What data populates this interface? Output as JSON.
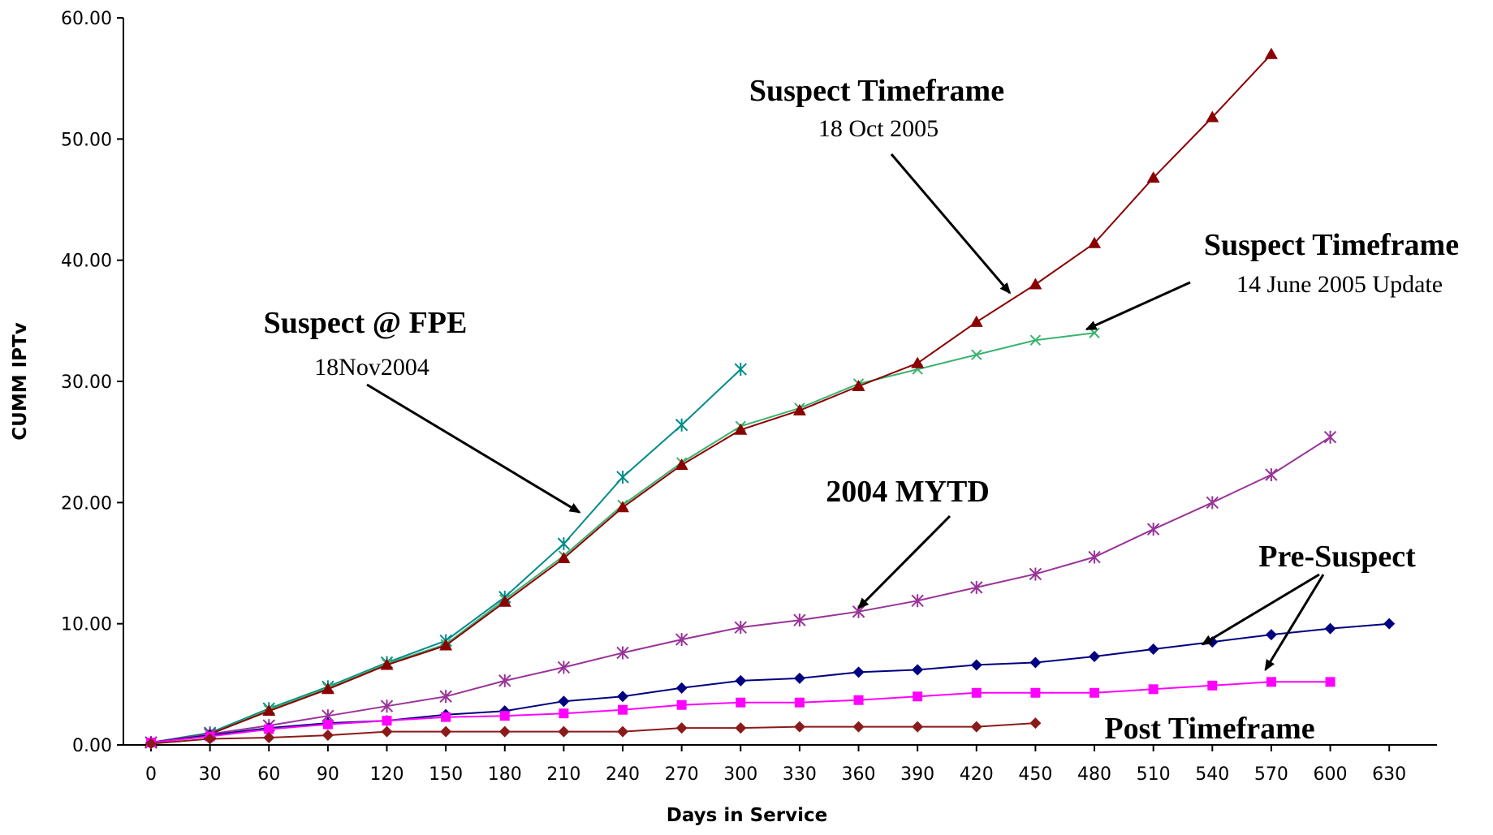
{
  "chart_data": {
    "type": "line",
    "xlabel": "Days in Service",
    "ylabel": "CUMM IPTv",
    "xlim": [
      0,
      630
    ],
    "ylim": [
      0,
      60
    ],
    "x_ticks": [
      "0",
      "30",
      "60",
      "90",
      "120",
      "150",
      "180",
      "210",
      "240",
      "270",
      "300",
      "330",
      "360",
      "390",
      "420",
      "450",
      "480",
      "510",
      "540",
      "570",
      "600",
      "630"
    ],
    "y_ticks": [
      "0.00",
      "10.00",
      "20.00",
      "30.00",
      "40.00",
      "50.00",
      "60.00"
    ],
    "grid": false,
    "legend": "none",
    "series": [
      {
        "color": "#008b8b",
        "marker": "star",
        "x": [
          0,
          30,
          60,
          90,
          120,
          150,
          180,
          210,
          240,
          270,
          300
        ],
        "y": [
          0.2,
          1.0,
          3.0,
          4.8,
          6.8,
          8.6,
          12.2,
          16.6,
          22.1,
          26.4,
          31.0
        ]
      },
      {
        "color": "#3cb371",
        "marker": "x",
        "x": [
          0,
          30,
          60,
          90,
          120,
          150,
          180,
          210,
          240,
          270,
          300,
          330,
          360,
          390,
          420,
          450,
          480
        ],
        "y": [
          0.2,
          0.9,
          2.9,
          4.7,
          6.7,
          8.3,
          12.0,
          15.6,
          19.8,
          23.3,
          26.3,
          27.8,
          29.8,
          31.0,
          32.2,
          33.4,
          34.0
        ]
      },
      {
        "color": "#8b0000",
        "marker": "triangle",
        "x": [
          0,
          30,
          60,
          90,
          120,
          150,
          180,
          210,
          240,
          270,
          300,
          330,
          360,
          390,
          420,
          450,
          480,
          510,
          540,
          570
        ],
        "y": [
          0.2,
          0.9,
          2.8,
          4.6,
          6.6,
          8.2,
          11.8,
          15.4,
          19.6,
          23.1,
          26.0,
          27.6,
          29.6,
          31.5,
          34.9,
          38.0,
          41.4,
          46.8,
          51.8,
          57.0
        ]
      },
      {
        "color": "#993399",
        "marker": "star",
        "x": [
          0,
          30,
          60,
          90,
          120,
          150,
          180,
          210,
          240,
          270,
          300,
          330,
          360,
          390,
          420,
          450,
          480,
          510,
          540,
          570,
          600
        ],
        "y": [
          0.2,
          0.9,
          1.6,
          2.4,
          3.2,
          4.0,
          5.3,
          6.4,
          7.6,
          8.7,
          9.7,
          10.3,
          11.0,
          11.9,
          13.0,
          14.1,
          15.5,
          17.8,
          20.0,
          22.3,
          25.4
        ]
      },
      {
        "color": "#000080",
        "marker": "diamond",
        "x": [
          0,
          30,
          60,
          90,
          120,
          150,
          180,
          210,
          240,
          270,
          300,
          330,
          360,
          390,
          420,
          450,
          480,
          510,
          540,
          570,
          600,
          630
        ],
        "y": [
          0.2,
          0.8,
          1.4,
          1.8,
          2.0,
          2.5,
          2.8,
          3.6,
          4.0,
          4.7,
          5.3,
          5.5,
          6.0,
          6.2,
          6.6,
          6.8,
          7.3,
          7.9,
          8.5,
          9.1,
          9.6,
          10.0
        ]
      },
      {
        "color": "#ff00ff",
        "marker": "square",
        "x": [
          0,
          30,
          60,
          90,
          120,
          150,
          180,
          210,
          240,
          270,
          300,
          330,
          360,
          390,
          420,
          450,
          480,
          510,
          540,
          570,
          600
        ],
        "y": [
          0.2,
          0.7,
          1.3,
          1.7,
          2.0,
          2.3,
          2.4,
          2.6,
          2.9,
          3.3,
          3.5,
          3.5,
          3.7,
          4.0,
          4.3,
          4.3,
          4.3,
          4.6,
          4.9,
          5.2,
          5.2
        ]
      },
      {
        "color": "#8b1a1a",
        "marker": "diamond",
        "x": [
          0,
          30,
          60,
          90,
          120,
          150,
          180,
          210,
          240,
          270,
          300,
          330,
          360,
          390,
          420,
          450
        ],
        "y": [
          0.1,
          0.5,
          0.6,
          0.8,
          1.1,
          1.1,
          1.1,
          1.1,
          1.1,
          1.4,
          1.4,
          1.5,
          1.5,
          1.5,
          1.5,
          1.8
        ]
      }
    ],
    "annotations": [
      {
        "title": "Suspect @ FPE",
        "subtitle": "18Nov2004",
        "arrow_to": [
          [
            218,
            19.2
          ]
        ]
      },
      {
        "title": "Suspect Timeframe",
        "subtitle": "18 Oct 2005",
        "arrow_to": [
          [
            437,
            37.3
          ]
        ]
      },
      {
        "title": "Suspect Timeframe",
        "subtitle": "14 June 2005 Update",
        "arrow_to": [
          [
            476,
            34.3
          ]
        ]
      },
      {
        "title": "2004 MYTD",
        "subtitle": "",
        "arrow_to": [
          [
            360,
            11.3
          ]
        ]
      },
      {
        "title": "Pre-Suspect",
        "subtitle": "",
        "arrow_to": [
          [
            535,
            8.3
          ],
          [
            567,
            6.2
          ]
        ]
      },
      {
        "title": "Post Timeframe",
        "subtitle": "",
        "arrow_to": []
      }
    ]
  }
}
